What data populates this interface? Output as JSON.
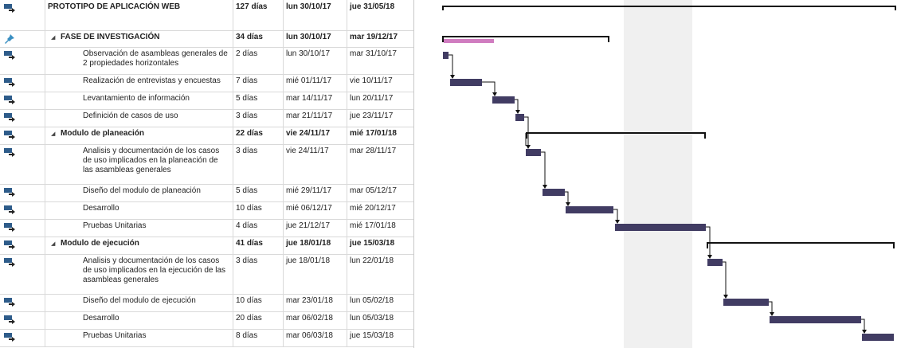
{
  "tasks": [
    {
      "id": "t0",
      "name": "PROTOTIPO DE APLICACIÓN WEB",
      "duration": "127 días",
      "start": "lun 30/10/17",
      "finish": "jue 31/05/18",
      "level": 0,
      "summary": true,
      "icon": "task-mode-auto-icon"
    },
    {
      "id": "t1",
      "name": "FASE DE INVESTIGACIÓN",
      "duration": "34 días",
      "start": "lun 30/10/17",
      "finish": "mar 19/12/17",
      "level": 1,
      "summary": true,
      "icon": "pushpin-icon"
    },
    {
      "id": "t2",
      "name": "Observación de asambleas generales de 2 propiedades horizontales",
      "duration": "2 días",
      "start": "lun 30/10/17",
      "finish": "mar 31/10/17",
      "level": 2,
      "summary": false,
      "icon": "task-mode-auto-icon"
    },
    {
      "id": "t3",
      "name": "Realización de entrevistas y encuestas",
      "duration": "7 días",
      "start": "mié 01/11/17",
      "finish": "vie 10/11/17",
      "level": 2,
      "summary": false,
      "icon": "task-mode-auto-icon"
    },
    {
      "id": "t4",
      "name": "Levantamiento de información",
      "duration": "5 días",
      "start": "mar 14/11/17",
      "finish": "lun 20/11/17",
      "level": 2,
      "summary": false,
      "icon": "task-mode-auto-icon"
    },
    {
      "id": "t5",
      "name": "Definición de casos de uso",
      "duration": "3 días",
      "start": "mar 21/11/17",
      "finish": "jue 23/11/17",
      "level": 2,
      "summary": false,
      "icon": "task-mode-auto-icon"
    },
    {
      "id": "t6",
      "name": "Modulo de planeación",
      "duration": "22 días",
      "start": "vie 24/11/17",
      "finish": "mié 17/01/18",
      "level": 1,
      "summary": true,
      "icon": "task-mode-auto-icon"
    },
    {
      "id": "t7",
      "name": "Analisis y documentación de los casos de uso implicados en la planeación de las asambleas generales",
      "duration": "3 días",
      "start": "vie 24/11/17",
      "finish": "mar 28/11/17",
      "level": 2,
      "summary": false,
      "icon": "task-mode-auto-icon"
    },
    {
      "id": "t8",
      "name": "Diseño del modulo de planeación",
      "duration": "5 días",
      "start": "mié 29/11/17",
      "finish": "mar 05/12/17",
      "level": 2,
      "summary": false,
      "icon": "task-mode-auto-icon"
    },
    {
      "id": "t9",
      "name": "Desarrollo",
      "duration": "10 días",
      "start": "mié 06/12/17",
      "finish": "mié 20/12/17",
      "level": 2,
      "summary": false,
      "icon": "task-mode-auto-icon"
    },
    {
      "id": "t10",
      "name": "Pruebas Unitarias",
      "duration": "4 días",
      "start": "jue 21/12/17",
      "finish": "mié 17/01/18",
      "level": 2,
      "summary": false,
      "icon": "task-mode-auto-icon"
    },
    {
      "id": "t11",
      "name": "Modulo de ejecución",
      "duration": "41 días",
      "start": "jue 18/01/18",
      "finish": "jue 15/03/18",
      "level": 1,
      "summary": true,
      "icon": "task-mode-auto-icon"
    },
    {
      "id": "t12",
      "name": "Analisis y documentación de los casos de uso implicados en la ejecución de las asambleas generales",
      "duration": "3 días",
      "start": "jue 18/01/18",
      "finish": "lun 22/01/18",
      "level": 2,
      "summary": false,
      "icon": "task-mode-auto-icon"
    },
    {
      "id": "t13",
      "name": "Diseño del modulo de ejecución",
      "duration": "10 días",
      "start": "mar 23/01/18",
      "finish": "lun 05/02/18",
      "level": 2,
      "summary": false,
      "icon": "task-mode-auto-icon"
    },
    {
      "id": "t14",
      "name": "Desarrollo",
      "duration": "20 días",
      "start": "mar 06/02/18",
      "finish": "lun 05/03/18",
      "level": 2,
      "summary": false,
      "icon": "task-mode-auto-icon"
    },
    {
      "id": "t15",
      "name": "Pruebas Unitarias",
      "duration": "8 días",
      "start": "mar 06/03/18",
      "finish": "jue 15/03/18",
      "level": 2,
      "summary": false,
      "icon": "task-mode-auto-icon"
    }
  ],
  "summary_progress": {
    "t1": 0.3
  },
  "colors": {
    "task_bar": "#413c63",
    "progress_bar": "#d07cc0",
    "summary_bar": "#111111",
    "link": "#111111",
    "icon_blue": "#2e5c8a"
  }
}
